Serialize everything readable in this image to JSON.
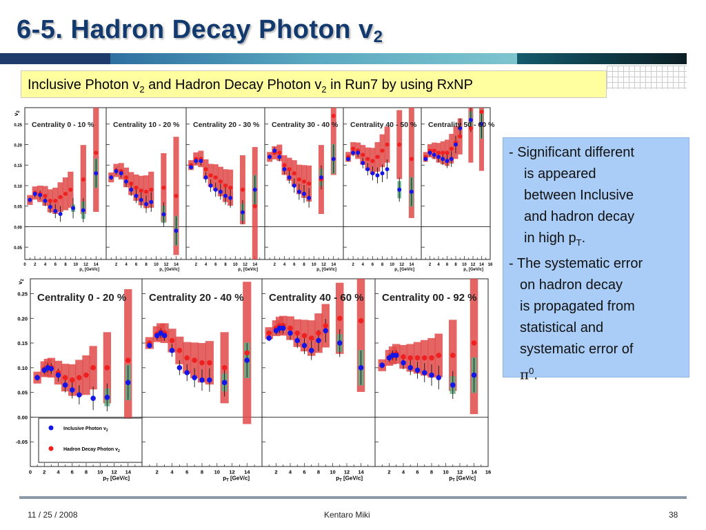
{
  "header": {
    "title": "6-5. Hadron Decay Photon v",
    "title_sub": "2"
  },
  "subtitle": {
    "pre": "Inclusive Photon v",
    "sub1": "2",
    "mid": " and Hadron Decay Photon v",
    "sub2": "2",
    "post": " in Run7 by using RxNP"
  },
  "notes": {
    "l1": "- Significant different",
    "l2": "is appeared",
    "l3": "between Inclusive",
    "l4": "and hadron decay",
    "l5": "in high p",
    "l5_sub": "T",
    "l5_end": ".",
    "l6": "- The systematic error",
    "l7": "on hadron decay",
    "l8": "is propagated from",
    "l9": "statistical and",
    "l10": "systematic error of",
    "l11_pi": "π",
    "l11_sup": "0",
    "l11_end": "."
  },
  "footer": {
    "date": "11 / 25 / 2008",
    "author": "Kentaro Miki",
    "page": "38"
  },
  "colors": {
    "inclusive": "#1515e6",
    "decay": "#ee2020",
    "decay_sys": "#e14a4a",
    "incl_sys": "#5fae86"
  },
  "chart_data": [
    {
      "type": "scatter",
      "ylabel": "v2",
      "xlabel": "p_T [GeV/c]",
      "xlim": [
        0,
        16
      ],
      "ylim": [
        -0.08,
        0.29
      ],
      "yticks": [
        0.25,
        0.2,
        0.15,
        0.1,
        0.05,
        0.0,
        -0.05
      ],
      "ytick_labels": [
        "0.25",
        "0.20",
        "0.15",
        "0.10",
        "0.05",
        "0.00",
        "-0.05"
      ],
      "panels": [
        {
          "label": "Centrality 0 - 10 %",
          "xticks": [
            0,
            2,
            4,
            6,
            8,
            10,
            12,
            14
          ],
          "tick_labels": [
            "0",
            "2",
            "4",
            "6",
            "8",
            "10",
            "12",
            "14"
          ],
          "xlabel": "p",
          "xlabel_sub": "T",
          "xlabel_end": " [GeV/c]",
          "inclusive_x": [
            1.0,
            2.0,
            3.0,
            4.0,
            5.0,
            6.0,
            7.0,
            9.5,
            11.5,
            14.0
          ],
          "inclusive_y": [
            0.065,
            0.08,
            0.077,
            0.063,
            0.048,
            0.038,
            0.031,
            0.045,
            0.04,
            0.13
          ],
          "decay_x": [
            1.0,
            2.0,
            3.0,
            4.0,
            5.0,
            6.0,
            7.0,
            8.0,
            9.0,
            11.5,
            14.0
          ],
          "decay_y": [
            0.065,
            0.082,
            0.08,
            0.075,
            0.063,
            0.063,
            0.072,
            0.08,
            0.09,
            0.115,
            0.18
          ]
        },
        {
          "label": "Centrality 10 - 20 %",
          "xticks": [
            2,
            4,
            6,
            8,
            10,
            12,
            14
          ],
          "tick_labels": [
            "2",
            "4",
            "6",
            "8",
            "10",
            "12",
            "14"
          ],
          "xlabel": "p",
          "xlabel_sub": "T",
          "xlabel_end": " [GeV/c]",
          "inclusive_x": [
            1.0,
            2.0,
            3.0,
            4.0,
            5.0,
            6.0,
            7.0,
            8.0,
            9.0,
            11.5,
            14.0
          ],
          "inclusive_y": [
            0.12,
            0.135,
            0.13,
            0.11,
            0.09,
            0.075,
            0.065,
            0.055,
            0.06,
            0.03,
            -0.01
          ],
          "decay_x": [
            1.0,
            2.0,
            3.0,
            4.0,
            5.0,
            6.0,
            7.0,
            8.0,
            9.0,
            11.5,
            14.0
          ],
          "decay_y": [
            0.12,
            0.137,
            0.135,
            0.12,
            0.105,
            0.095,
            0.088,
            0.085,
            0.09,
            0.095,
            0.075
          ]
        },
        {
          "label": "Centrality 20 - 30 %",
          "xticks": [
            2,
            4,
            6,
            8,
            10,
            12,
            14
          ],
          "tick_labels": [
            "2",
            "4",
            "6",
            "8",
            "10",
            "12",
            "14"
          ],
          "xlabel": "p",
          "xlabel_sub": "T",
          "xlabel_end": " [GeV/c]",
          "inclusive_x": [
            1.0,
            2.0,
            3.0,
            4.0,
            5.0,
            6.0,
            7.0,
            8.0,
            9.0,
            11.5,
            14.0
          ],
          "inclusive_y": [
            0.145,
            0.16,
            0.16,
            0.12,
            0.1,
            0.09,
            0.085,
            0.075,
            0.07,
            0.035,
            0.09
          ],
          "decay_x": [
            1.0,
            2.0,
            3.0,
            4.0,
            5.0,
            6.0,
            7.0,
            8.0,
            9.0,
            11.5,
            14.0
          ],
          "decay_y": [
            0.15,
            0.165,
            0.165,
            0.14,
            0.125,
            0.12,
            0.11,
            0.1,
            0.095,
            0.09,
            0.05
          ]
        },
        {
          "label": "Centrality 30 - 40 %",
          "xticks": [
            2,
            4,
            6,
            8,
            10,
            12,
            14
          ],
          "tick_labels": [
            "2",
            "4",
            "6",
            "8",
            "10",
            "12",
            "14"
          ],
          "xlabel": "p",
          "xlabel_sub": "T",
          "xlabel_end": " [GeV/c]",
          "inclusive_x": [
            1.0,
            2.0,
            3.0,
            4.0,
            5.0,
            6.0,
            7.0,
            8.0,
            9.0,
            11.5,
            14.0
          ],
          "inclusive_y": [
            0.17,
            0.185,
            0.17,
            0.14,
            0.12,
            0.1,
            0.085,
            0.08,
            0.07,
            0.12,
            0.165
          ],
          "decay_x": [
            1.0,
            2.0,
            3.0,
            4.0,
            5.0,
            6.0,
            7.0,
            8.0,
            9.0,
            11.5,
            14.0
          ],
          "decay_y": [
            0.17,
            0.18,
            0.18,
            0.15,
            0.14,
            0.13,
            0.115,
            0.11,
            0.105,
            0.115,
            0.27
          ]
        },
        {
          "label": "Centrality 40 - 50 %",
          "xticks": [
            2,
            4,
            6,
            8,
            10,
            12,
            14
          ],
          "tick_labels": [
            "2",
            "4",
            "6",
            "8",
            "10",
            "12",
            "14"
          ],
          "xlabel": "p",
          "xlabel_sub": "T",
          "xlabel_end": " [GeV/c]",
          "inclusive_x": [
            1.0,
            2.0,
            3.0,
            4.0,
            5.0,
            6.0,
            7.0,
            8.0,
            9.0,
            11.5,
            14.0
          ],
          "inclusive_y": [
            0.165,
            0.18,
            0.18,
            0.155,
            0.14,
            0.13,
            0.125,
            0.13,
            0.14,
            0.09,
            0.085
          ],
          "decay_x": [
            1.0,
            2.0,
            3.0,
            4.0,
            5.0,
            6.0,
            7.0,
            8.0,
            9.0,
            11.5,
            14.0
          ],
          "decay_y": [
            0.17,
            0.19,
            0.185,
            0.175,
            0.165,
            0.16,
            0.17,
            0.185,
            0.2,
            0.2,
            0.165
          ]
        },
        {
          "label": "Centrality 50 - 60 %",
          "xticks": [
            2,
            4,
            6,
            8,
            10,
            12,
            14,
            16
          ],
          "tick_labels": [
            "2",
            "4",
            "6",
            "8",
            "10",
            "12",
            "14",
            "16"
          ],
          "xlabel": "p",
          "xlabel_sub": "T",
          "xlabel_end": " [GeV/c]",
          "inclusive_x": [
            1.0,
            2.0,
            3.0,
            4.0,
            5.0,
            6.0,
            7.0,
            8.0,
            9.0,
            11.5,
            14.0
          ],
          "inclusive_y": [
            0.165,
            0.18,
            0.175,
            0.17,
            0.165,
            0.16,
            0.165,
            0.2,
            0.24,
            0.26,
            0.25
          ],
          "decay_x": [
            1.0,
            2.0,
            3.0,
            4.0,
            5.0,
            6.0,
            7.0,
            8.0,
            9.0,
            11.5,
            14.0
          ],
          "decay_y": [
            0.17,
            0.185,
            0.185,
            0.18,
            0.18,
            0.18,
            0.19,
            0.205,
            0.22,
            0.24,
            0.28
          ]
        }
      ]
    },
    {
      "type": "scatter",
      "ylabel": "v2",
      "xlabel": "p_T [GeV/c]",
      "xlim": [
        0,
        16
      ],
      "ylim": [
        -0.1,
        0.28
      ],
      "yticks": [
        0.25,
        0.2,
        0.15,
        0.1,
        0.05,
        0.0,
        -0.05
      ],
      "ytick_labels": [
        "0.25",
        "0.20",
        "0.15",
        "0.10",
        "0.05",
        "0.00",
        "-0.05"
      ],
      "legend": [
        {
          "label": "Inclusive Photon v",
          "sub": "2"
        },
        {
          "label": "Hadron Decay Photon v",
          "sub": "2"
        }
      ],
      "panels": [
        {
          "label": "Centrality 0 - 20 %",
          "xticks": [
            0,
            2,
            4,
            6,
            8,
            10,
            12,
            14
          ],
          "tick_labels": [
            "0",
            "2",
            "4",
            "6",
            "8",
            "10",
            "12",
            "14"
          ],
          "xlabel": "p",
          "xlabel_sub": "T",
          "xlabel_end": " [GeV/c]",
          "inclusive_x": [
            1.0,
            2.0,
            2.5,
            3.0,
            4.0,
            5.0,
            6.0,
            7.0,
            9.0,
            11.0,
            14.0
          ],
          "inclusive_y": [
            0.08,
            0.095,
            0.1,
            0.098,
            0.085,
            0.065,
            0.055,
            0.045,
            0.038,
            0.04,
            0.07
          ],
          "decay_x": [
            1.0,
            2.0,
            2.5,
            3.0,
            4.0,
            5.0,
            6.0,
            7.0,
            8.0,
            9.0,
            11.0,
            14.0
          ],
          "decay_y": [
            0.08,
            0.097,
            0.1,
            0.1,
            0.09,
            0.08,
            0.075,
            0.08,
            0.085,
            0.1,
            0.1,
            0.115
          ]
        },
        {
          "label": "Centrality 20 - 40 %",
          "xticks": [
            2,
            4,
            6,
            8,
            10,
            12,
            14
          ],
          "tick_labels": [
            "2",
            "4",
            "6",
            "8",
            "10",
            "12",
            "14"
          ],
          "xlabel": "p",
          "xlabel_sub": "T",
          "xlabel_end": " [GeV/c]",
          "inclusive_x": [
            1.0,
            2.0,
            2.5,
            3.0,
            4.0,
            5.0,
            6.0,
            7.0,
            8.0,
            9.0,
            11.0,
            14.0
          ],
          "inclusive_y": [
            0.145,
            0.165,
            0.17,
            0.165,
            0.135,
            0.1,
            0.09,
            0.08,
            0.075,
            0.075,
            0.07,
            0.115
          ],
          "decay_x": [
            1.0,
            2.0,
            2.5,
            3.0,
            4.0,
            5.0,
            6.0,
            7.0,
            8.0,
            9.0,
            11.0,
            14.0
          ],
          "decay_y": [
            0.15,
            0.168,
            0.172,
            0.17,
            0.155,
            0.135,
            0.12,
            0.115,
            0.11,
            0.11,
            0.1,
            0.13
          ]
        },
        {
          "label": "Centrality 40 - 60 %",
          "xticks": [
            2,
            4,
            6,
            8,
            10,
            12,
            14
          ],
          "tick_labels": [
            "2",
            "4",
            "6",
            "8",
            "10",
            "12",
            "14"
          ],
          "xlabel": "p",
          "xlabel_sub": "T",
          "xlabel_end": " [GeV/c]",
          "inclusive_x": [
            1.0,
            2.0,
            2.5,
            3.0,
            4.0,
            5.0,
            6.0,
            7.0,
            8.0,
            9.0,
            11.0,
            14.0
          ],
          "inclusive_y": [
            0.16,
            0.175,
            0.18,
            0.18,
            0.17,
            0.155,
            0.145,
            0.135,
            0.155,
            0.175,
            0.15,
            0.1
          ],
          "decay_x": [
            1.0,
            2.0,
            2.5,
            3.0,
            4.0,
            5.0,
            6.0,
            7.0,
            8.0,
            9.0,
            11.0,
            14.0
          ],
          "decay_y": [
            0.17,
            0.18,
            0.185,
            0.185,
            0.18,
            0.17,
            0.165,
            0.16,
            0.17,
            0.185,
            0.2,
            0.195
          ]
        },
        {
          "label": "Centrality 00 - 92 %",
          "xticks": [
            2,
            4,
            6,
            8,
            10,
            12,
            14,
            16
          ],
          "tick_labels": [
            "2",
            "4",
            "6",
            "8",
            "10",
            "12",
            "14",
            "16"
          ],
          "xlabel": "p",
          "xlabel_sub": "T",
          "xlabel_end": " [GeV/c]",
          "inclusive_x": [
            1.0,
            2.0,
            2.5,
            3.0,
            4.0,
            5.0,
            6.0,
            7.0,
            8.0,
            9.0,
            11.0,
            14.0
          ],
          "inclusive_y": [
            0.105,
            0.12,
            0.125,
            0.125,
            0.11,
            0.1,
            0.095,
            0.09,
            0.085,
            0.08,
            0.065,
            0.085
          ],
          "decay_x": [
            1.0,
            2.0,
            2.5,
            3.0,
            4.0,
            5.0,
            6.0,
            7.0,
            8.0,
            9.0,
            11.0,
            14.0
          ],
          "decay_y": [
            0.105,
            0.12,
            0.125,
            0.128,
            0.122,
            0.12,
            0.12,
            0.12,
            0.12,
            0.125,
            0.125,
            0.15
          ]
        }
      ]
    }
  ]
}
